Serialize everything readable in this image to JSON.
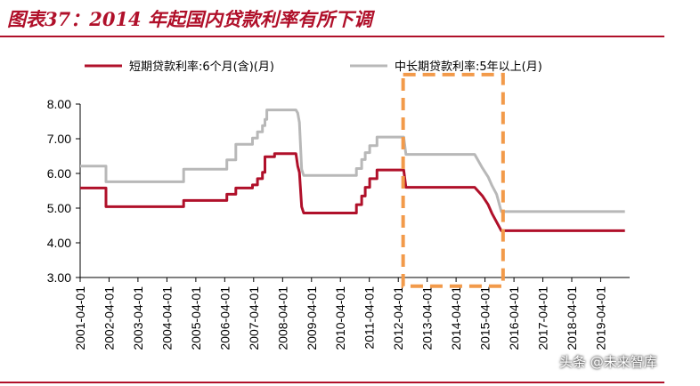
{
  "header": {
    "figure_title": "图表37：2014 年起国内贷款利率有所下调"
  },
  "watermark": {
    "text": "头条 @未来智库"
  },
  "colors": {
    "title": "#b0102a",
    "short_term_series": "#b0102a",
    "long_term_series": "#b8b8b8",
    "highlight_box": "#f29a4a"
  },
  "chart_data": {
    "type": "line",
    "title": "图表37：2014 年起国内贷款利率有所下调",
    "xlabel": "",
    "ylabel": "",
    "ylim": [
      3.0,
      8.0
    ],
    "yticks": [
      "3.00",
      "4.00",
      "5.00",
      "6.00",
      "7.00",
      "8.00"
    ],
    "xlim": [
      "2001-04-01",
      "2020-04-01"
    ],
    "xticks": [
      "2001-04-01",
      "2002-04-01",
      "2003-04-01",
      "2004-04-01",
      "2005-04-01",
      "2006-04-01",
      "2007-04-01",
      "2008-04-01",
      "2009-04-01",
      "2010-04-01",
      "2011-04-01",
      "2012-04-01",
      "2013-04-01",
      "2014-04-01",
      "2015-04-01",
      "2016-04-01",
      "2017-04-01",
      "2018-04-01",
      "2019-04-01"
    ],
    "grid": false,
    "legend_position": "top",
    "series": [
      {
        "name": "短期贷款利率:6个月(含)(月)",
        "points": [
          [
            "2001-04-01",
            5.58
          ],
          [
            "2002-02-21",
            5.58
          ],
          [
            "2002-02-21",
            5.04
          ],
          [
            "2004-10-29",
            5.04
          ],
          [
            "2004-10-29",
            5.22
          ],
          [
            "2006-04-28",
            5.22
          ],
          [
            "2006-04-28",
            5.4
          ],
          [
            "2006-08-19",
            5.4
          ],
          [
            "2006-08-19",
            5.58
          ],
          [
            "2007-03-18",
            5.58
          ],
          [
            "2007-03-18",
            5.67
          ],
          [
            "2007-05-19",
            5.67
          ],
          [
            "2007-05-19",
            5.85
          ],
          [
            "2007-07-21",
            5.85
          ],
          [
            "2007-07-21",
            6.03
          ],
          [
            "2007-08-22",
            6.03
          ],
          [
            "2007-08-22",
            6.48
          ],
          [
            "2007-12-21",
            6.48
          ],
          [
            "2007-12-21",
            6.57
          ],
          [
            "2008-09-16",
            6.57
          ],
          [
            "2008-10-09",
            6.21
          ],
          [
            "2008-10-30",
            6.03
          ],
          [
            "2008-11-27",
            5.04
          ],
          [
            "2008-12-23",
            4.86
          ],
          [
            "2010-10-20",
            4.86
          ],
          [
            "2010-10-20",
            5.1
          ],
          [
            "2010-12-26",
            5.1
          ],
          [
            "2010-12-26",
            5.35
          ],
          [
            "2011-02-09",
            5.35
          ],
          [
            "2011-02-09",
            5.6
          ],
          [
            "2011-04-06",
            5.6
          ],
          [
            "2011-04-06",
            5.85
          ],
          [
            "2011-07-07",
            5.85
          ],
          [
            "2011-07-07",
            6.1
          ],
          [
            "2012-06-08",
            6.1
          ],
          [
            "2012-07-06",
            5.6
          ],
          [
            "2014-11-22",
            5.6
          ],
          [
            "2015-03-01",
            5.35
          ],
          [
            "2015-05-11",
            5.1
          ],
          [
            "2015-06-28",
            4.85
          ],
          [
            "2015-08-26",
            4.6
          ],
          [
            "2015-10-24",
            4.35
          ],
          [
            "2020-02-01",
            4.35
          ]
        ]
      },
      {
        "name": "中长期贷款利率:5年以上(月)",
        "points": [
          [
            "2001-04-01",
            6.21
          ],
          [
            "2002-02-21",
            6.21
          ],
          [
            "2002-02-21",
            5.76
          ],
          [
            "2004-10-29",
            5.76
          ],
          [
            "2004-10-29",
            6.12
          ],
          [
            "2006-04-28",
            6.12
          ],
          [
            "2006-04-28",
            6.39
          ],
          [
            "2006-08-19",
            6.39
          ],
          [
            "2006-08-19",
            6.84
          ],
          [
            "2007-03-18",
            6.84
          ],
          [
            "2007-03-18",
            7.02
          ],
          [
            "2007-05-19",
            7.02
          ],
          [
            "2007-05-19",
            7.2
          ],
          [
            "2007-07-21",
            7.2
          ],
          [
            "2007-07-21",
            7.38
          ],
          [
            "2007-08-22",
            7.38
          ],
          [
            "2007-08-22",
            7.56
          ],
          [
            "2007-09-15",
            7.56
          ],
          [
            "2007-09-15",
            7.83
          ],
          [
            "2008-09-16",
            7.83
          ],
          [
            "2008-10-09",
            7.74
          ],
          [
            "2008-10-30",
            7.47
          ],
          [
            "2008-11-27",
            6.12
          ],
          [
            "2008-12-23",
            5.94
          ],
          [
            "2010-10-20",
            5.94
          ],
          [
            "2010-10-20",
            6.14
          ],
          [
            "2010-12-26",
            6.14
          ],
          [
            "2010-12-26",
            6.4
          ],
          [
            "2011-02-09",
            6.4
          ],
          [
            "2011-02-09",
            6.6
          ],
          [
            "2011-04-06",
            6.6
          ],
          [
            "2011-04-06",
            6.8
          ],
          [
            "2011-07-07",
            6.8
          ],
          [
            "2011-07-07",
            7.05
          ],
          [
            "2012-06-08",
            7.05
          ],
          [
            "2012-07-06",
            6.55
          ],
          [
            "2014-11-22",
            6.55
          ],
          [
            "2015-03-01",
            6.15
          ],
          [
            "2015-05-11",
            5.9
          ],
          [
            "2015-06-28",
            5.65
          ],
          [
            "2015-08-26",
            5.4
          ],
          [
            "2015-10-24",
            4.9
          ],
          [
            "2020-02-01",
            4.9
          ]
        ]
      }
    ],
    "annotations": [
      {
        "type": "dashed-box",
        "x_start": "2012-06-01",
        "x_end": "2015-11-15",
        "y_low": 2.75,
        "y_high": 8.85
      }
    ]
  }
}
